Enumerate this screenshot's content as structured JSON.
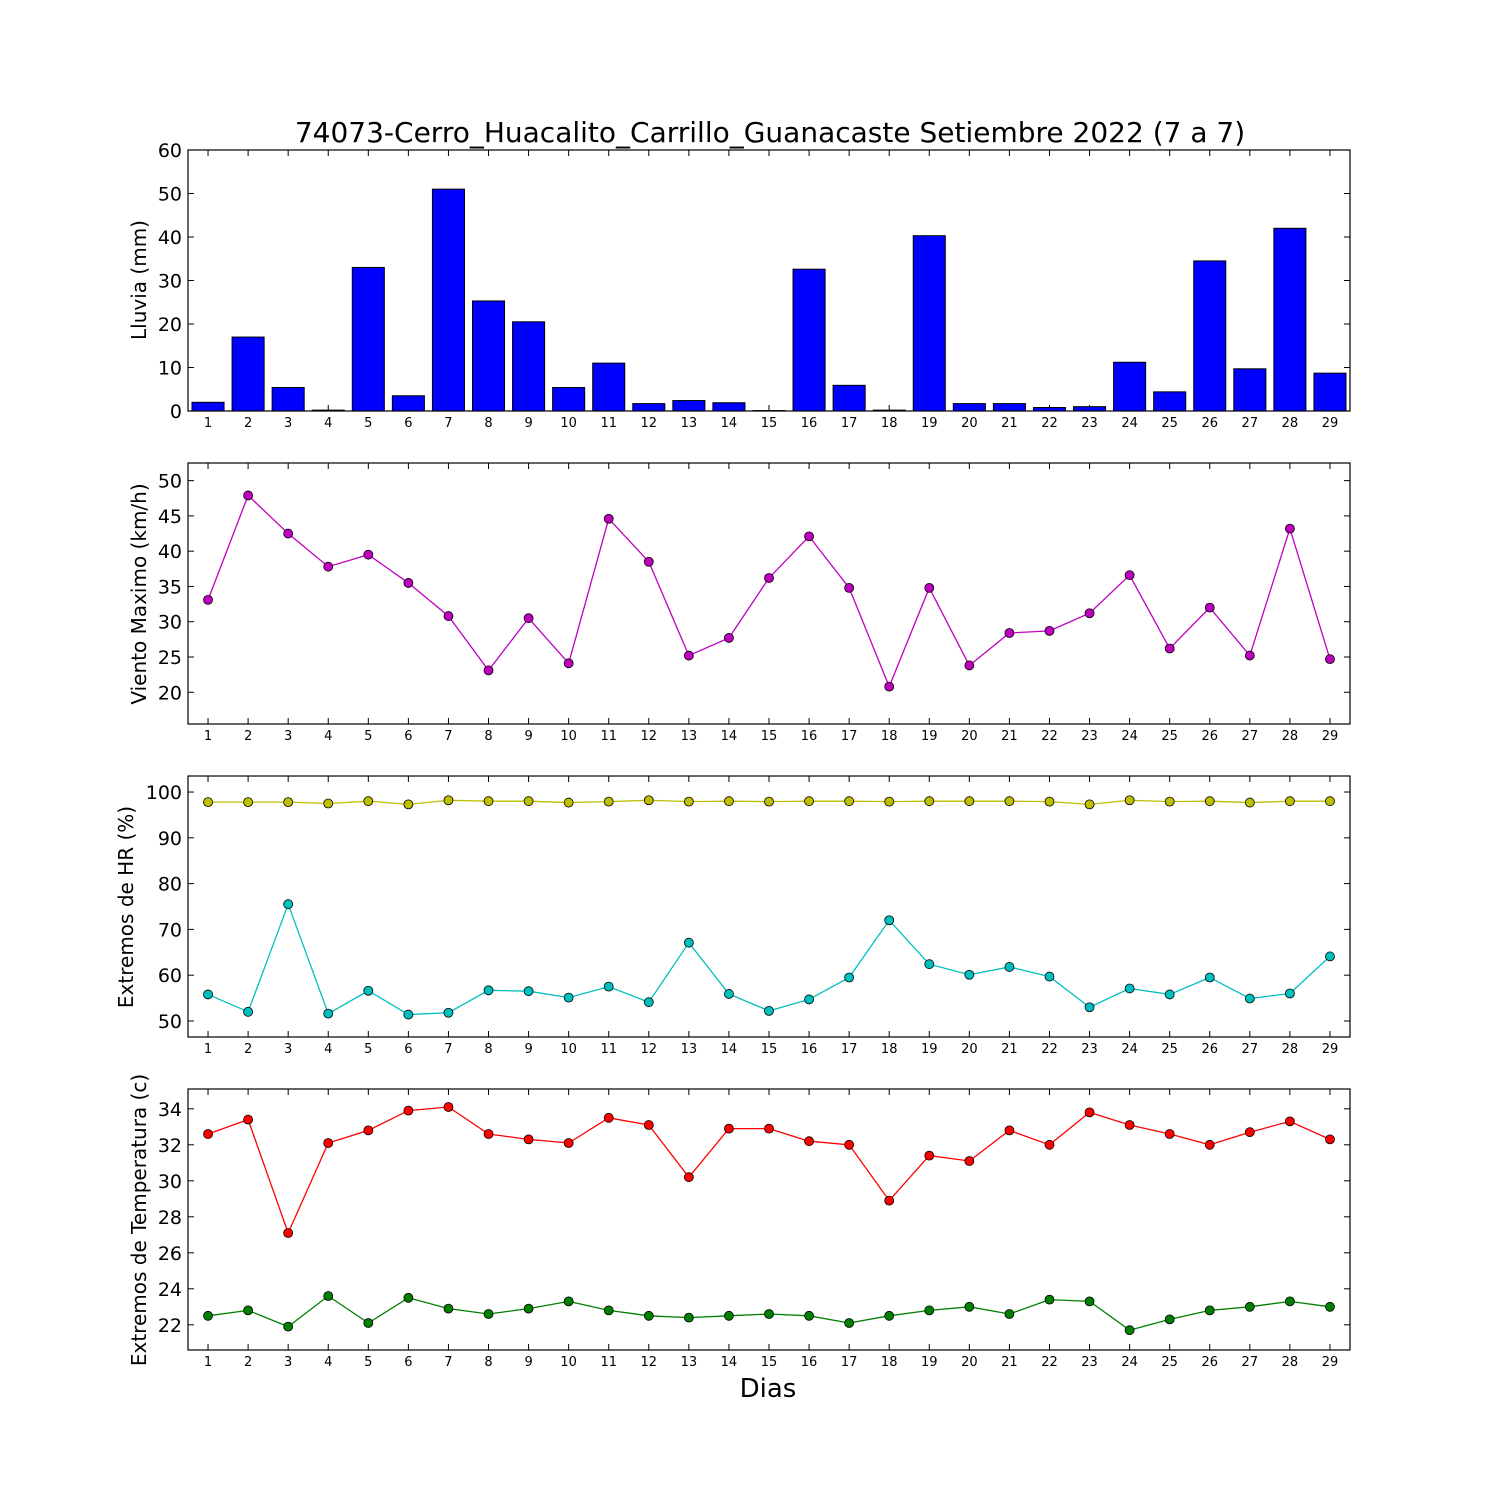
{
  "chart_data": [
    {
      "type": "bar",
      "title": "74073-Cerro_Huacalito_Carrillo_Guanacaste Setiembre 2022  (7 a 7)",
      "ylabel": "Lluvia (mm)",
      "xlabel": "",
      "categories": [
        "1",
        "2",
        "3",
        "4",
        "5",
        "6",
        "7",
        "8",
        "9",
        "10",
        "11",
        "12",
        "13",
        "14",
        "15",
        "16",
        "17",
        "18",
        "19",
        "20",
        "21",
        "22",
        "23",
        "24",
        "25",
        "26",
        "27",
        "28",
        "29"
      ],
      "values": [
        2.0,
        17.0,
        5.4,
        0.2,
        33.0,
        3.5,
        51.0,
        25.3,
        20.5,
        5.4,
        11.0,
        1.7,
        2.4,
        1.9,
        0.1,
        32.6,
        5.9,
        0.2,
        40.3,
        1.7,
        1.7,
        0.8,
        1.0,
        11.2,
        4.4,
        34.5,
        9.7,
        42.0,
        8.7
      ],
      "ylim": [
        0,
        60
      ],
      "yticks": [
        0,
        10,
        20,
        30,
        40,
        50,
        60
      ],
      "color": "#0000ff"
    },
    {
      "type": "line",
      "ylabel": "Viento Maximo (km/h)",
      "xlabel": "",
      "categories": [
        "1",
        "2",
        "3",
        "4",
        "5",
        "6",
        "7",
        "8",
        "9",
        "10",
        "11",
        "12",
        "13",
        "14",
        "15",
        "16",
        "17",
        "18",
        "19",
        "20",
        "21",
        "22",
        "23",
        "24",
        "25",
        "26",
        "27",
        "28",
        "29"
      ],
      "series": [
        {
          "values": [
            33.1,
            47.9,
            42.5,
            37.8,
            39.5,
            35.5,
            30.8,
            23.1,
            30.5,
            24.1,
            44.6,
            38.5,
            25.2,
            27.7,
            36.2,
            42.1,
            34.8,
            20.8,
            34.8,
            23.8,
            28.4,
            28.7,
            31.2,
            36.6,
            26.2,
            32.0,
            25.2,
            43.2,
            24.7
          ],
          "color": "#bf00bf"
        }
      ],
      "ylim": [
        15.5,
        52.5
      ],
      "yticks": [
        20,
        25,
        30,
        35,
        40,
        45,
        50
      ]
    },
    {
      "type": "line",
      "ylabel": "Extremos de HR (%)",
      "xlabel": "",
      "categories": [
        "1",
        "2",
        "3",
        "4",
        "5",
        "6",
        "7",
        "8",
        "9",
        "10",
        "11",
        "12",
        "13",
        "14",
        "15",
        "16",
        "17",
        "18",
        "19",
        "20",
        "21",
        "22",
        "23",
        "24",
        "25",
        "26",
        "27",
        "28",
        "29"
      ],
      "series": [
        {
          "values": [
            97.8,
            97.8,
            97.8,
            97.5,
            98.0,
            97.3,
            98.2,
            98.0,
            98.0,
            97.7,
            97.9,
            98.2,
            97.9,
            98.0,
            97.9,
            98.0,
            98.0,
            97.9,
            98.0,
            98.0,
            98.0,
            97.9,
            97.3,
            98.2,
            97.9,
            98.0,
            97.7,
            98.0,
            98.0
          ],
          "color": "#bfbf00"
        },
        {
          "values": [
            55.8,
            52.0,
            75.5,
            51.6,
            56.6,
            51.4,
            51.8,
            56.7,
            56.5,
            55.1,
            57.5,
            54.1,
            67.1,
            55.9,
            52.2,
            54.7,
            59.5,
            72.0,
            62.4,
            60.1,
            61.8,
            59.7,
            53.0,
            57.1,
            55.8,
            59.5,
            54.9,
            56.0,
            64.1
          ],
          "color": "#00bfbf"
        }
      ],
      "ylim": [
        46.5,
        103.5
      ],
      "yticks": [
        50,
        60,
        70,
        80,
        90,
        100
      ]
    },
    {
      "type": "line",
      "ylabel": "Extremos de Temperatura (c)",
      "xlabel": "Dias",
      "categories": [
        "1",
        "2",
        "3",
        "4",
        "5",
        "6",
        "7",
        "8",
        "9",
        "10",
        "11",
        "12",
        "13",
        "14",
        "15",
        "16",
        "17",
        "18",
        "19",
        "20",
        "21",
        "22",
        "23",
        "24",
        "25",
        "26",
        "27",
        "28",
        "29"
      ],
      "series": [
        {
          "values": [
            32.6,
            33.4,
            27.1,
            32.1,
            32.8,
            33.9,
            34.1,
            32.6,
            32.3,
            32.1,
            33.5,
            33.1,
            30.2,
            32.9,
            32.9,
            32.2,
            32.0,
            28.9,
            31.4,
            31.1,
            32.8,
            32.0,
            33.8,
            33.1,
            32.6,
            32.0,
            32.7,
            33.3,
            32.3
          ],
          "color": "#ff0000"
        },
        {
          "values": [
            22.5,
            22.8,
            21.9,
            23.6,
            22.1,
            23.5,
            22.9,
            22.6,
            22.9,
            23.3,
            22.8,
            22.5,
            22.4,
            22.5,
            22.6,
            22.5,
            22.1,
            22.5,
            22.8,
            23.0,
            22.6,
            23.4,
            23.3,
            21.7,
            22.3,
            22.8,
            23.0,
            23.3,
            23.0
          ],
          "color": "#007f00"
        }
      ],
      "ylim": [
        20.6,
        35.1
      ],
      "yticks": [
        22,
        24,
        26,
        28,
        30,
        32,
        34
      ]
    }
  ]
}
